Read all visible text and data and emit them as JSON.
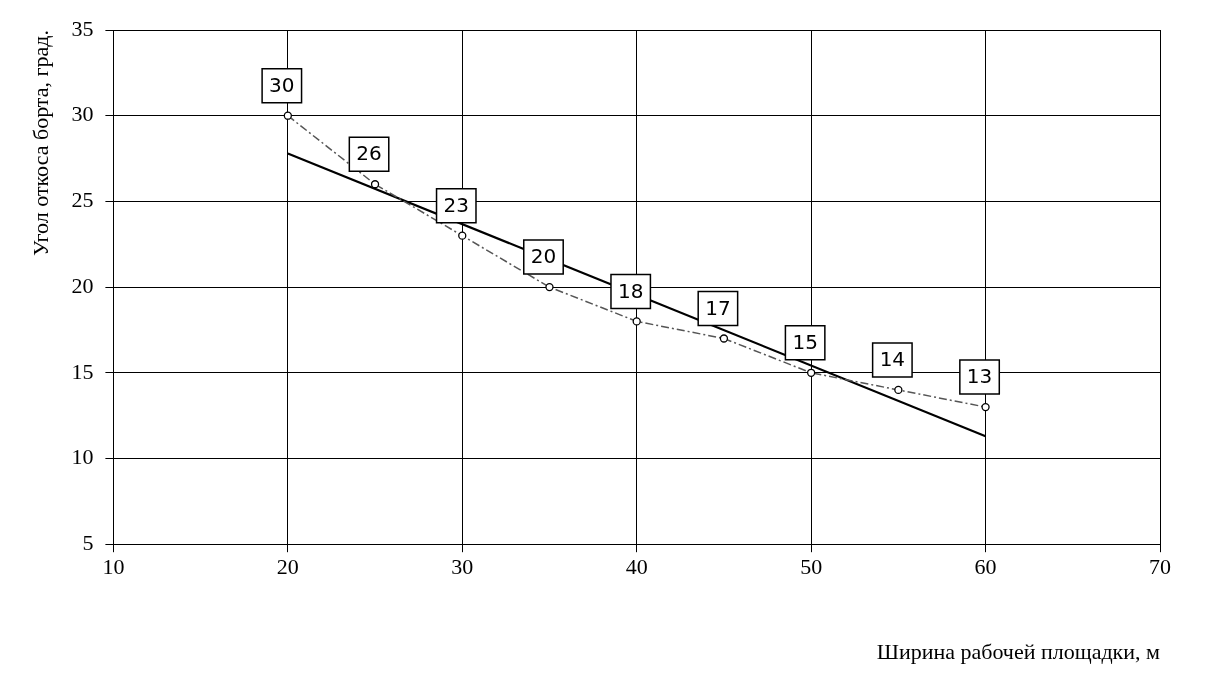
{
  "chart_data": {
    "type": "line",
    "xlabel": "Ширина рабочей площадки, м",
    "ylabel": "Угол откоса борта, град.",
    "xlim": [
      10,
      70
    ],
    "xticks": [
      10,
      20,
      30,
      40,
      50,
      60,
      70
    ],
    "ylim": [
      5,
      35
    ],
    "yticks": [
      5,
      10,
      15,
      20,
      25,
      30,
      35
    ],
    "grid": true,
    "legend": false,
    "series": [
      {
        "color": "#555555",
        "marker": "circle",
        "line_style": "dashed",
        "x": [
          20,
          25,
          30,
          35,
          40,
          45,
          50,
          55,
          60
        ],
        "values": [
          30,
          26,
          23,
          20,
          18,
          17,
          15,
          14,
          13
        ],
        "value_labels": [
          "30",
          "26",
          "23",
          "20",
          "18",
          "17",
          "15",
          "14",
          "13"
        ]
      },
      {
        "color": "#000000",
        "marker": "none",
        "line_style": "solid",
        "x": [
          20,
          60
        ],
        "values": [
          27.8,
          11.3
        ]
      }
    ]
  }
}
